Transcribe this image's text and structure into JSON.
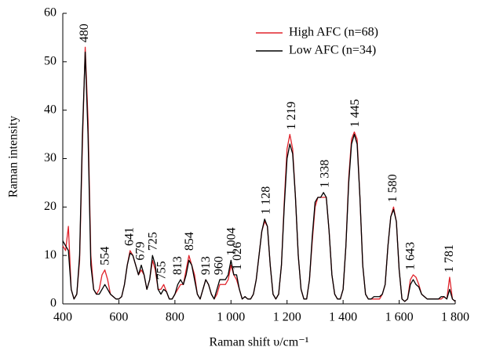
{
  "chart_data": {
    "type": "line",
    "x_label": "Raman shift υ/cm⁻¹",
    "y_label": "Raman intensity",
    "x": [
      400,
      410,
      420,
      430,
      440,
      450,
      460,
      470,
      480,
      490,
      500,
      510,
      520,
      530,
      540,
      550,
      560,
      570,
      580,
      590,
      600,
      610,
      620,
      630,
      640,
      650,
      660,
      670,
      680,
      690,
      700,
      710,
      720,
      730,
      740,
      750,
      760,
      770,
      780,
      790,
      800,
      810,
      820,
      830,
      840,
      850,
      860,
      870,
      880,
      890,
      900,
      910,
      920,
      930,
      940,
      950,
      960,
      970,
      980,
      990,
      1000,
      1010,
      1020,
      1030,
      1040,
      1050,
      1060,
      1070,
      1080,
      1090,
      1100,
      1110,
      1120,
      1130,
      1140,
      1150,
      1160,
      1170,
      1180,
      1190,
      1200,
      1210,
      1220,
      1230,
      1240,
      1250,
      1260,
      1270,
      1280,
      1290,
      1300,
      1310,
      1320,
      1330,
      1340,
      1350,
      1360,
      1370,
      1380,
      1390,
      1400,
      1410,
      1420,
      1430,
      1440,
      1450,
      1460,
      1470,
      1480,
      1490,
      1500,
      1510,
      1520,
      1530,
      1540,
      1550,
      1560,
      1570,
      1580,
      1590,
      1600,
      1610,
      1620,
      1630,
      1640,
      1650,
      1660,
      1670,
      1680,
      1690,
      1700,
      1710,
      1720,
      1730,
      1740,
      1750,
      1760,
      1770,
      1780,
      1790,
      1800
    ],
    "series": [
      {
        "name": "High AFC (n=68)",
        "color": "#e0232b",
        "values": [
          12,
          11,
          16,
          3,
          1,
          2,
          9,
          33,
          53,
          38,
          10,
          3,
          2,
          3,
          6,
          7,
          5,
          2,
          1.5,
          1,
          1,
          1.5,
          4,
          8,
          11,
          10,
          8,
          6,
          7,
          6,
          3,
          5,
          9,
          7,
          3,
          3,
          4,
          2.5,
          1,
          1,
          2,
          3,
          4,
          4,
          7,
          10,
          8,
          6,
          2,
          1,
          3,
          5,
          4,
          2,
          1,
          2,
          4,
          4,
          4,
          5,
          8,
          6,
          5,
          3,
          1,
          1.5,
          1,
          1,
          2,
          5,
          10,
          15,
          17,
          16,
          8,
          2,
          1,
          2,
          8,
          21,
          32,
          35,
          32,
          22,
          10,
          3,
          1,
          1,
          5,
          13,
          20,
          22,
          22,
          22,
          22,
          15,
          6,
          2,
          1,
          1,
          3,
          12,
          26,
          34,
          35.5,
          34,
          22,
          8,
          2,
          1,
          1,
          1,
          1,
          1,
          2,
          4,
          12,
          18,
          20,
          17,
          7,
          1,
          0.5,
          1,
          5,
          6,
          5.5,
          4,
          2,
          1.5,
          1,
          1,
          1,
          1,
          1,
          1,
          1.5,
          1,
          5.5,
          1,
          0.5
        ]
      },
      {
        "name": "Low AFC (n=34)",
        "color": "#000000",
        "values": [
          13,
          12,
          11,
          3,
          1,
          2,
          10,
          35,
          52,
          35,
          8,
          3,
          2,
          2,
          3,
          4,
          3,
          2,
          1.5,
          1,
          1,
          1.5,
          4,
          8,
          10.5,
          10,
          8,
          6,
          8,
          6,
          3,
          5,
          10,
          8,
          3,
          2,
          3,
          2.5,
          1,
          1,
          2,
          4,
          5,
          4,
          6,
          9,
          8,
          5,
          2,
          1,
          3,
          5,
          4,
          2,
          1,
          3,
          5,
          5,
          5,
          6,
          9,
          6,
          6,
          3,
          1,
          1.5,
          1,
          1,
          2,
          5,
          10,
          15,
          17.5,
          16,
          8,
          2,
          1,
          2,
          8,
          20,
          30,
          33,
          31,
          22,
          10,
          3,
          1,
          1,
          5,
          14,
          21,
          22,
          22,
          23,
          22,
          15,
          6,
          2,
          1,
          1,
          3,
          12,
          25,
          33,
          35,
          33,
          22,
          8,
          2,
          1,
          1,
          1.5,
          1.5,
          1.5,
          2,
          4,
          12,
          18,
          19.5,
          17,
          7,
          1,
          0.5,
          1,
          4,
          5,
          4,
          3.5,
          2,
          1.5,
          1,
          1,
          1,
          1,
          1,
          1.5,
          1.5,
          1,
          3,
          1,
          0.5
        ]
      }
    ],
    "annotations": [
      {
        "x": 480,
        "label": "480"
      },
      {
        "x": 554,
        "label": "554"
      },
      {
        "x": 641,
        "label": "641"
      },
      {
        "x": 679,
        "label": "679"
      },
      {
        "x": 725,
        "label": "725"
      },
      {
        "x": 755,
        "label": "755"
      },
      {
        "x": 813,
        "label": "813"
      },
      {
        "x": 854,
        "label": "854"
      },
      {
        "x": 913,
        "label": "913"
      },
      {
        "x": 960,
        "label": "960"
      },
      {
        "x": 1004,
        "label": "1 004"
      },
      {
        "x": 1026,
        "label": "1 026"
      },
      {
        "x": 1128,
        "label": "1 128"
      },
      {
        "x": 1219,
        "label": "1 219"
      },
      {
        "x": 1338,
        "label": "1 338"
      },
      {
        "x": 1445,
        "label": "1 445"
      },
      {
        "x": 1580,
        "label": "1 580"
      },
      {
        "x": 1643,
        "label": "1 643"
      },
      {
        "x": 1781,
        "label": "1 781"
      }
    ],
    "xlim": [
      400,
      1800
    ],
    "xticks": [
      400,
      600,
      800,
      {
        "value": 1000,
        "label": "1 000"
      },
      {
        "value": 1200,
        "label": "1 200"
      },
      {
        "value": 1400,
        "label": "1 400"
      },
      {
        "value": 1600,
        "label": "1 600"
      },
      {
        "value": 1800,
        "label": "1 800"
      }
    ],
    "ylim": [
      0,
      60
    ],
    "yticks": [
      0,
      10,
      20,
      30,
      40,
      50,
      60
    ],
    "grid": false,
    "legend": "upper right"
  }
}
